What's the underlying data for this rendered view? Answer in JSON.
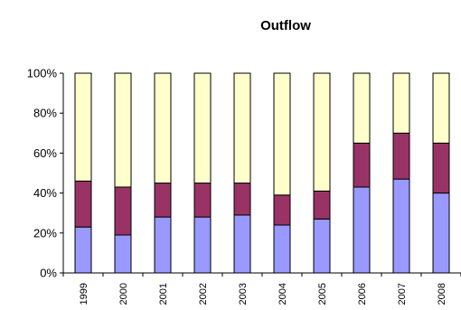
{
  "chart_data": {
    "type": "bar",
    "stacked": true,
    "percent_stacked": true,
    "title": "Outflow",
    "xlabel": "",
    "ylabel": "",
    "categories": [
      "1999",
      "2000",
      "2001",
      "2002",
      "2003",
      "2004",
      "2005",
      "2006",
      "2007",
      "2008"
    ],
    "series": [
      {
        "color": "#9999FF",
        "values": [
          23,
          19,
          28,
          28,
          29,
          24,
          27,
          43,
          47,
          40
        ]
      },
      {
        "color": "#993366",
        "values": [
          23,
          24,
          17,
          17,
          16,
          15,
          14,
          22,
          23,
          25
        ]
      },
      {
        "color": "#FFFFCC",
        "values": [
          54,
          57,
          55,
          55,
          55,
          61,
          59,
          35,
          30,
          35
        ]
      }
    ],
    "ylim": [
      0,
      100
    ],
    "y_ticks": [
      "0%",
      "20%",
      "40%",
      "60%",
      "80%",
      "100%"
    ],
    "grid": false,
    "legend": "none"
  }
}
